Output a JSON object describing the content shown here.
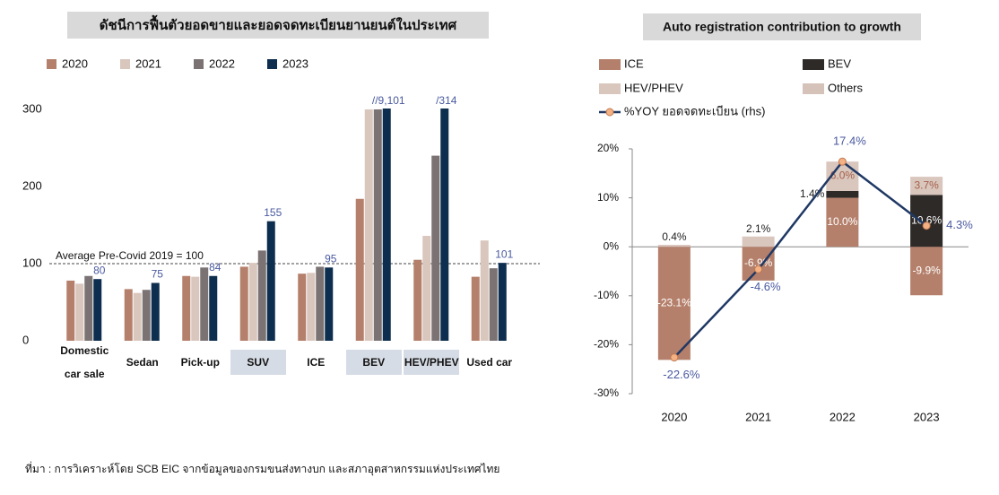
{
  "chart_data": [
    {
      "type": "bar",
      "title": "ดัชนีการฟื้นตัวยอดขายและยอดจดทะเบียนยานยนต์ในประเทศ",
      "categories": [
        "Domestic car sale",
        "Sedan",
        "Pick-up",
        "SUV",
        "ICE",
        "BEV",
        "HEV/PHEV",
        "Used car"
      ],
      "series": [
        {
          "name": "2020",
          "color": "#b5806b",
          "values": [
            78,
            67,
            84,
            96,
            87,
            184,
            105,
            83
          ]
        },
        {
          "name": "2021",
          "color": "#d9c6bd",
          "values": [
            74,
            62,
            83,
            101,
            88,
            300,
            136,
            130
          ]
        },
        {
          "name": "2022",
          "color": "#7b7373",
          "values": [
            84,
            66,
            95,
            117,
            96,
            300,
            240,
            94
          ]
        },
        {
          "name": "2023",
          "color": "#0d2e4e",
          "values": [
            80,
            75,
            84,
            155,
            95,
            9101,
            314,
            101
          ],
          "value_labels": [
            "80",
            "75",
            "84",
            "155",
            "95",
            "//9,101",
            "/314",
            "101"
          ]
        }
      ],
      "ylim": [
        0,
        300
      ],
      "yticks": [
        0,
        100,
        200,
        300
      ],
      "reference_line": {
        "value": 100,
        "label": "Average Pre-Covid 2019 = 100"
      },
      "legend": "top"
    },
    {
      "type": "combo",
      "title": "Auto registration contribution to growth",
      "categories": [
        "2020",
        "2021",
        "2022",
        "2023"
      ],
      "series": [
        {
          "name": "ICE",
          "type": "bar",
          "color": "#b5806b",
          "values": [
            -23.1,
            -6.9,
            10.0,
            -9.9
          ],
          "value_labels": [
            "-23.1%",
            "-6.9%",
            "10.0%",
            "-9.9%"
          ]
        },
        {
          "name": "BEV",
          "type": "bar",
          "color": "#2e2a28",
          "values": [
            null,
            null,
            1.4,
            10.6
          ],
          "value_labels": [
            null,
            null,
            "1.4%",
            "10.6%"
          ]
        },
        {
          "name": "HEV/PHEV",
          "type": "bar",
          "color": "#d9c6bd",
          "values": [
            0.4,
            2.1,
            6.0,
            3.7
          ],
          "value_labels": [
            "0.4%",
            "2.1%",
            "6.0%",
            "3.7%"
          ]
        },
        {
          "name": "Others",
          "type": "bar",
          "color": "#d5c2b8",
          "values": [
            null,
            null,
            null,
            null
          ]
        },
        {
          "name": "%YOY ยอดจดทะเบียน (rhs)",
          "type": "line",
          "color": "#1f3864",
          "marker_color": "#f4b183",
          "values": [
            -22.6,
            -4.6,
            17.4,
            4.3
          ],
          "value_labels": [
            "-22.6%",
            "-4.6%",
            "17.4%",
            "4.3%"
          ]
        }
      ],
      "ylim": [
        -30,
        20
      ],
      "yticks": [
        {
          "value": -30,
          "label": "-30%"
        },
        {
          "value": -20,
          "label": "-20%"
        },
        {
          "value": -10,
          "label": "-10%"
        },
        {
          "value": 0,
          "label": "0%"
        },
        {
          "value": 10,
          "label": "10%"
        },
        {
          "value": 20,
          "label": "20%"
        }
      ],
      "legend": "top"
    }
  ],
  "source": "ที่มา : การวิเคราะห์โดย SCB EIC จากข้อมูลของกรมขนส่งทางบก และสภาอุตสาหกรรมแห่งประเทศไทย"
}
